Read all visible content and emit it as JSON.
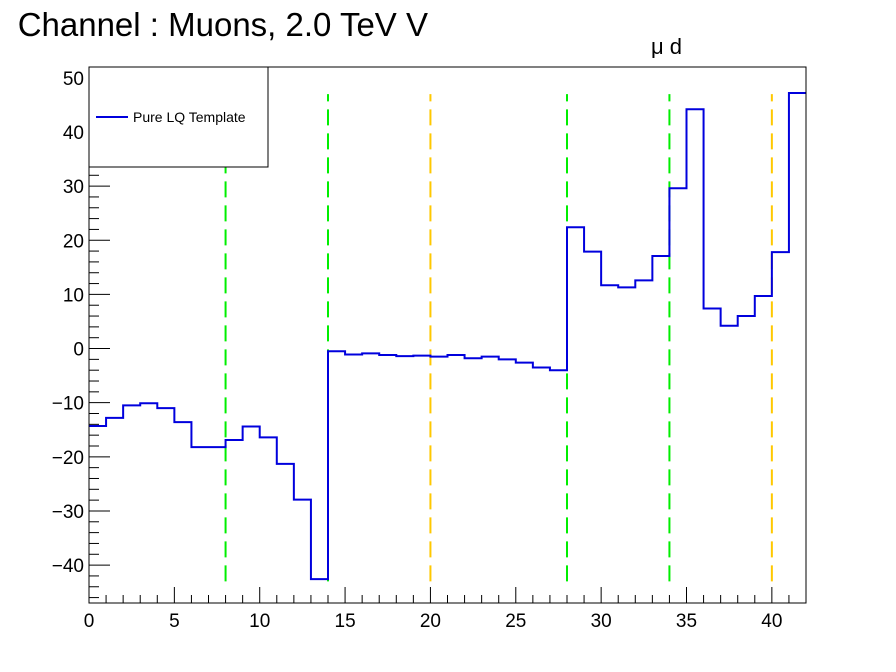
{
  "chart_data": {
    "type": "line",
    "title": "Channel : Muons, 2.0 TeV V",
    "title_subscript": "μ d",
    "xlabel": "",
    "ylabel": "",
    "xlim": [
      0,
      42
    ],
    "ylim": [
      -47,
      52
    ],
    "x_ticks": [
      0,
      5,
      10,
      15,
      20,
      25,
      30,
      35,
      40
    ],
    "y_ticks": [
      -40,
      -30,
      -20,
      -10,
      0,
      10,
      20,
      30,
      40,
      50
    ],
    "grid": false,
    "legend_position": "top-left",
    "legend": [
      "Pure LQ Template"
    ],
    "series": [
      {
        "name": "Pure LQ Template",
        "color": "#0000dd",
        "draw": "step",
        "bin_width": 1,
        "bin_edges_start": 0,
        "values": [
          -14.3,
          -12.8,
          -10.5,
          -10.1,
          -11.0,
          -13.6,
          -18.2,
          -18.2,
          -16.9,
          -14.4,
          -16.4,
          -21.3,
          -27.9,
          -42.6,
          -0.5,
          -1.1,
          -0.9,
          -1.2,
          -1.4,
          -1.3,
          -1.5,
          -1.2,
          -1.8,
          -1.5,
          -2.0,
          -2.6,
          -3.5,
          -4.0,
          22.4,
          17.9,
          11.7,
          11.3,
          12.6,
          17.1,
          29.6,
          44.2,
          7.4,
          4.2,
          6.0,
          9.7,
          17.8,
          47.2
        ]
      }
    ],
    "vertical_lines": [
      {
        "x": 8,
        "color": "#00ee00",
        "y_from": -43,
        "y_to": 47
      },
      {
        "x": 14,
        "color": "#00ee00",
        "y_from": -43,
        "y_to": 47
      },
      {
        "x": 20,
        "color": "#ffc800",
        "y_from": -43,
        "y_to": 47
      },
      {
        "x": 28,
        "color": "#00ee00",
        "y_from": -43,
        "y_to": 47
      },
      {
        "x": 34,
        "color": "#00ee00",
        "y_from": -43,
        "y_to": 47
      },
      {
        "x": 40,
        "color": "#ffc800",
        "y_from": -43,
        "y_to": 47
      }
    ]
  }
}
